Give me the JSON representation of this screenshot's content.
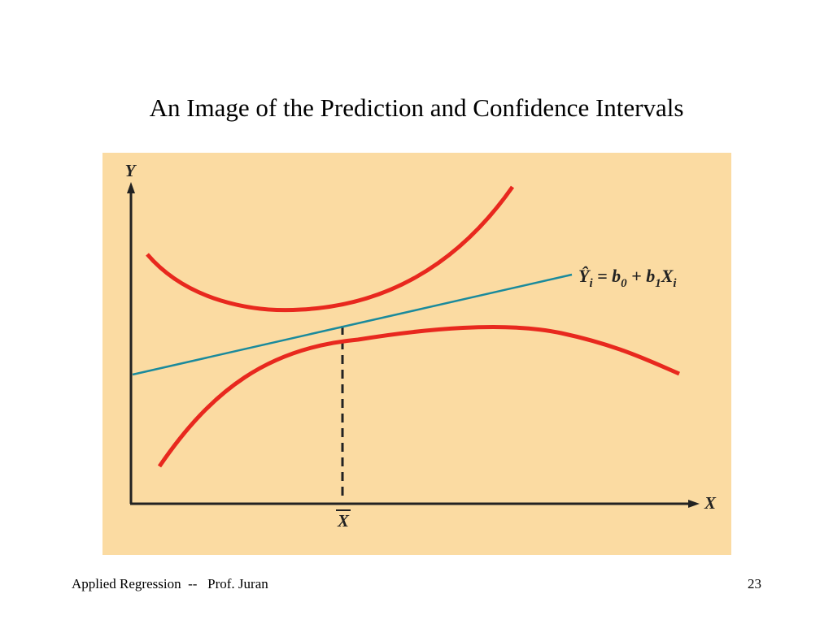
{
  "title": "An Image of the Prediction and Confidence Intervals",
  "diagram": {
    "y_axis_label": "Y",
    "x_axis_label": "X",
    "x_bar_label": "X",
    "equation": [
      {
        "text": "Ŷ",
        "sub": false
      },
      {
        "text": "i",
        "sub": true
      },
      {
        "text": " = b",
        "sub": false
      },
      {
        "text": "0",
        "sub": true
      },
      {
        "text": " + b",
        "sub": false
      },
      {
        "text": "1",
        "sub": true
      },
      {
        "text": "X",
        "sub": false
      },
      {
        "text": "i",
        "sub": true
      }
    ]
  },
  "footer": {
    "left": "Applied Regression  --   Prof. Juran",
    "page": "23"
  }
}
